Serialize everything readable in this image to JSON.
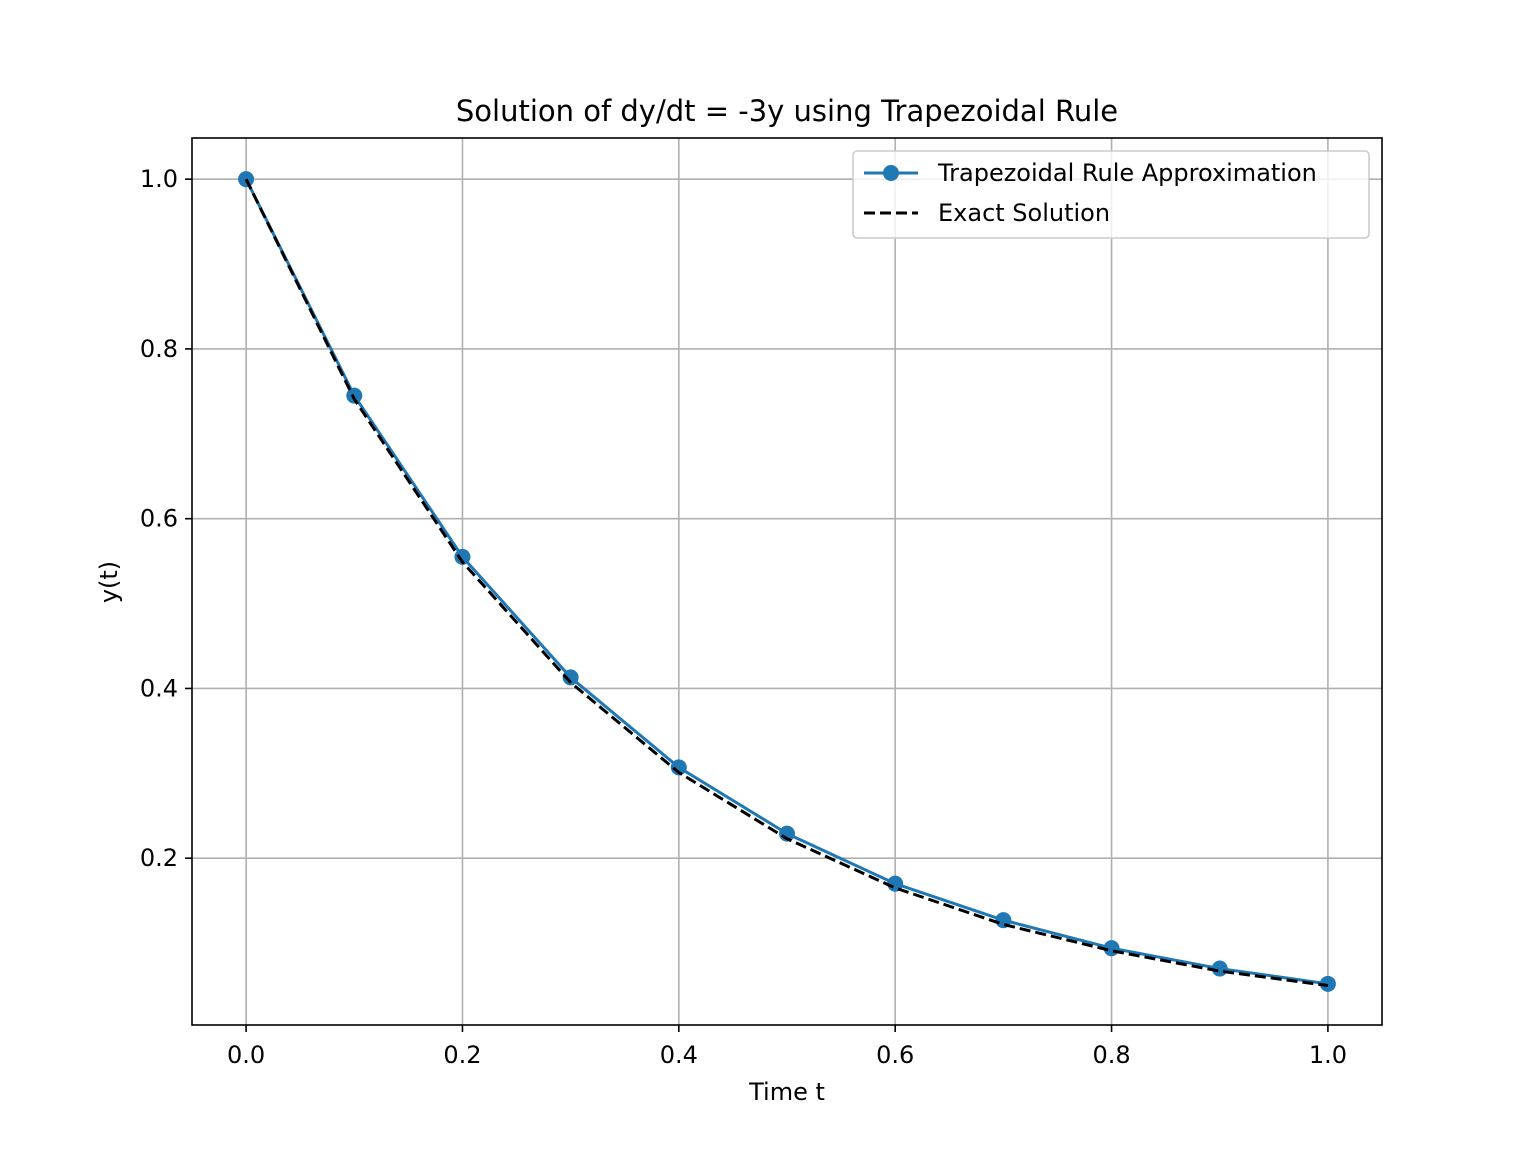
{
  "chart_data": {
    "type": "line",
    "title": "Solution of dy/dt = -3y using Trapezoidal Rule",
    "xlabel": "Time t",
    "ylabel": "y(t)",
    "xlim": [
      -0.05,
      1.05
    ],
    "ylim": [
      0.0035,
      1.0485
    ],
    "xticks": [
      "0.0",
      "0.2",
      "0.4",
      "0.6",
      "0.8",
      "1.0"
    ],
    "yticks": [
      "0.2",
      "0.4",
      "0.6",
      "0.8",
      "1.0"
    ],
    "grid": true,
    "legend_position": "top-right",
    "x": [
      0.0,
      0.1,
      0.2,
      0.3,
      0.4,
      0.5,
      0.6,
      0.7,
      0.8,
      0.9,
      1.0
    ],
    "series": [
      {
        "name": "Trapezoidal Rule Approximation",
        "color": "#1f77b4",
        "style": "solid-markers",
        "values": [
          1.0,
          0.745,
          0.555,
          0.413,
          0.307,
          0.229,
          0.17,
          0.127,
          0.094,
          0.07,
          0.052
        ]
      },
      {
        "name": "Exact Solution",
        "color": "#000000",
        "style": "dashed",
        "values": [
          1.0,
          0.741,
          0.549,
          0.407,
          0.301,
          0.223,
          0.165,
          0.122,
          0.091,
          0.067,
          0.05
        ]
      }
    ]
  }
}
